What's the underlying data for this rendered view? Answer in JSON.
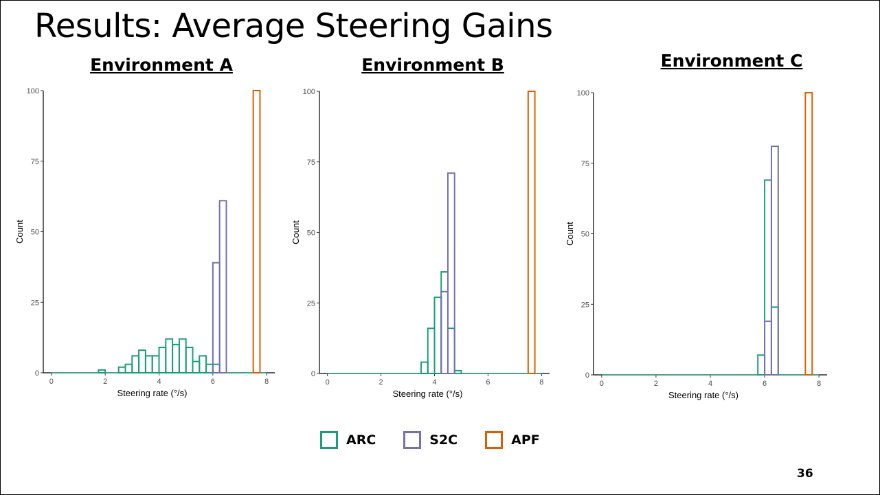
{
  "slide": {
    "title": "Results: Average Steering Gains",
    "page_number": "36"
  },
  "legend": [
    {
      "name": "ARC",
      "color": "#1b9e77"
    },
    {
      "name": "S2C",
      "color": "#7570b3"
    },
    {
      "name": "APF",
      "color": "#d95f02"
    }
  ],
  "chart_data": [
    {
      "type": "bar",
      "title": "Environment A",
      "xlabel": "Steering rate (°/s)",
      "ylabel": "Count",
      "xlim": [
        -0.3,
        8.3
      ],
      "ylim": [
        0,
        100
      ],
      "xticks": [
        "0",
        "2",
        "4",
        "6",
        "8"
      ],
      "yticks": [
        "0",
        "25",
        "50",
        "75",
        "100"
      ],
      "grid": false,
      "bin_width": 0.25,
      "series": [
        {
          "name": "ARC",
          "color": "#1b9e77",
          "bins": [
            [
              1.875,
              1
            ],
            [
              2.625,
              2
            ],
            [
              2.875,
              3
            ],
            [
              3.125,
              6
            ],
            [
              3.375,
              8
            ],
            [
              3.625,
              6
            ],
            [
              3.875,
              6
            ],
            [
              4.125,
              9
            ],
            [
              4.375,
              12
            ],
            [
              4.625,
              10
            ],
            [
              4.875,
              12
            ],
            [
              5.125,
              9
            ],
            [
              5.375,
              4
            ],
            [
              5.625,
              6
            ],
            [
              5.875,
              3
            ],
            [
              6.125,
              3
            ]
          ]
        },
        {
          "name": "S2C",
          "color": "#7570b3",
          "bins": [
            [
              6.125,
              39
            ],
            [
              6.375,
              61
            ]
          ]
        },
        {
          "name": "APF",
          "color": "#d95f02",
          "bins": [
            [
              7.625,
              100
            ]
          ]
        }
      ]
    },
    {
      "type": "bar",
      "title": "Environment B",
      "xlabel": "Steering rate (°/s)",
      "ylabel": "Count",
      "xlim": [
        -0.3,
        8.3
      ],
      "ylim": [
        0,
        100
      ],
      "xticks": [
        "0",
        "2",
        "4",
        "6",
        "8"
      ],
      "yticks": [
        "0",
        "25",
        "50",
        "75",
        "100"
      ],
      "grid": false,
      "bin_width": 0.25,
      "series": [
        {
          "name": "ARC",
          "color": "#1b9e77",
          "bins": [
            [
              3.625,
              4
            ],
            [
              3.875,
              16
            ],
            [
              4.125,
              27
            ],
            [
              4.375,
              36
            ],
            [
              4.625,
              16
            ],
            [
              4.875,
              1
            ]
          ]
        },
        {
          "name": "S2C",
          "color": "#7570b3",
          "bins": [
            [
              4.375,
              29
            ],
            [
              4.625,
              71
            ]
          ]
        },
        {
          "name": "APF",
          "color": "#d95f02",
          "bins": [
            [
              7.625,
              100
            ]
          ]
        }
      ]
    },
    {
      "type": "bar",
      "title": "Environment C",
      "xlabel": "Steering rate (°/s)",
      "ylabel": "Count",
      "xlim": [
        -0.3,
        8.3
      ],
      "ylim": [
        0,
        100
      ],
      "xticks": [
        "0",
        "2",
        "4",
        "6",
        "8"
      ],
      "yticks": [
        "0",
        "25",
        "50",
        "75",
        "100"
      ],
      "grid": false,
      "bin_width": 0.25,
      "series": [
        {
          "name": "ARC",
          "color": "#1b9e77",
          "bins": [
            [
              5.875,
              7
            ],
            [
              6.125,
              69
            ],
            [
              6.375,
              24
            ]
          ]
        },
        {
          "name": "S2C",
          "color": "#7570b3",
          "bins": [
            [
              6.125,
              19
            ],
            [
              6.375,
              81
            ]
          ]
        },
        {
          "name": "APF",
          "color": "#d95f02",
          "bins": [
            [
              7.625,
              100
            ]
          ]
        }
      ]
    }
  ]
}
